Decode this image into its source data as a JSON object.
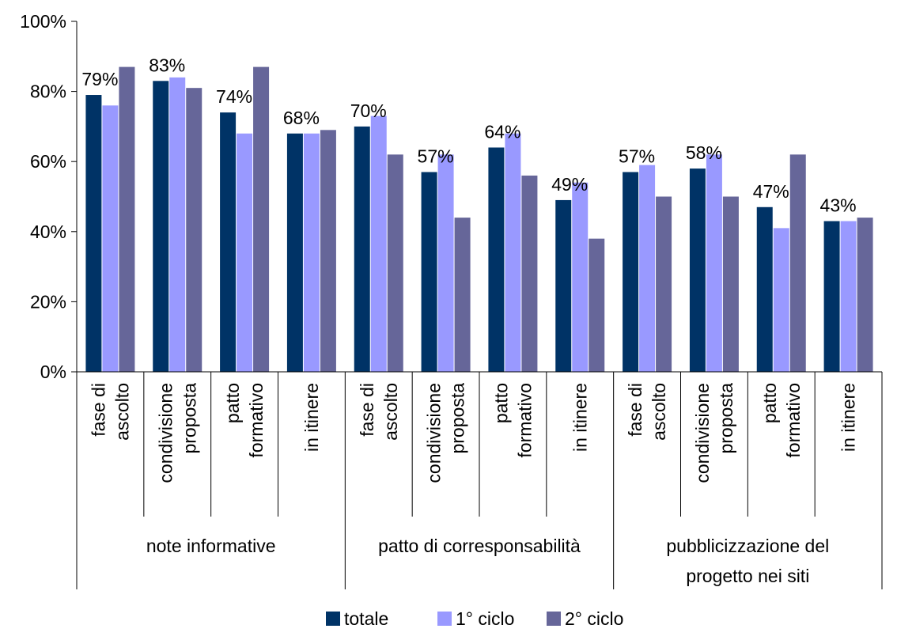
{
  "chart_data": {
    "type": "bar",
    "groups": [
      {
        "label": "note informative",
        "lines": [
          "note informative"
        ],
        "categories": [
          0,
          1,
          2,
          3
        ]
      },
      {
        "label": "patto di corresponsabilità",
        "lines": [
          "patto di corresponsabilità"
        ],
        "categories": [
          4,
          5,
          6,
          7
        ]
      },
      {
        "label": "pubblicizzazione del progetto nei siti",
        "lines": [
          "pubblicizzazione del",
          "progetto nei siti"
        ],
        "categories": [
          8,
          9,
          10,
          11
        ]
      }
    ],
    "categories": [
      {
        "label": "fase di ascolto",
        "lines": [
          "fase di",
          "ascolto"
        ]
      },
      {
        "label": "condivisione proposta",
        "lines": [
          "condivisione",
          "proposta"
        ]
      },
      {
        "label": "patto formativo",
        "lines": [
          "patto",
          "formativo"
        ]
      },
      {
        "label": "in itinere",
        "lines": [
          "in itinere"
        ]
      },
      {
        "label": "fase di ascolto",
        "lines": [
          "fase di",
          "ascolto"
        ]
      },
      {
        "label": "condivisione proposta",
        "lines": [
          "condivisione",
          "proposta"
        ]
      },
      {
        "label": "patto formativo",
        "lines": [
          "patto",
          "formativo"
        ]
      },
      {
        "label": "in itinere",
        "lines": [
          "in itinere"
        ]
      },
      {
        "label": "fase di ascolto",
        "lines": [
          "fase di",
          "ascolto"
        ]
      },
      {
        "label": "condivisione proposta",
        "lines": [
          "condivisione",
          "proposta"
        ]
      },
      {
        "label": "patto formativo",
        "lines": [
          "patto",
          "formativo"
        ]
      },
      {
        "label": "in itinere",
        "lines": [
          "in itinere"
        ]
      }
    ],
    "series": [
      {
        "name": "totale",
        "color": "#003366",
        "values": [
          79,
          83,
          74,
          68,
          70,
          57,
          64,
          49,
          57,
          58,
          47,
          43
        ],
        "data_labels": [
          "79%",
          "83%",
          "74%",
          "68%",
          "70%",
          "57%",
          "64%",
          "49%",
          "57%",
          "58%",
          "47%",
          "43%"
        ]
      },
      {
        "name": "1° ciclo",
        "color": "#9999FF",
        "values": [
          76,
          84,
          68,
          68,
          73,
          62,
          68,
          54,
          59,
          62,
          41,
          43
        ]
      },
      {
        "name": "2° ciclo",
        "color": "#666699",
        "values": [
          87,
          81,
          87,
          69,
          62,
          44,
          56,
          38,
          50,
          50,
          62,
          44
        ]
      }
    ],
    "ylim": [
      0,
      100
    ],
    "yticks": [
      0,
      20,
      40,
      60,
      80,
      100
    ],
    "ytick_labels": [
      "0%",
      "20%",
      "40%",
      "60%",
      "80%",
      "100%"
    ],
    "grid": false,
    "legend_position": "bottom-center",
    "title": "",
    "xlabel": "",
    "ylabel": ""
  }
}
